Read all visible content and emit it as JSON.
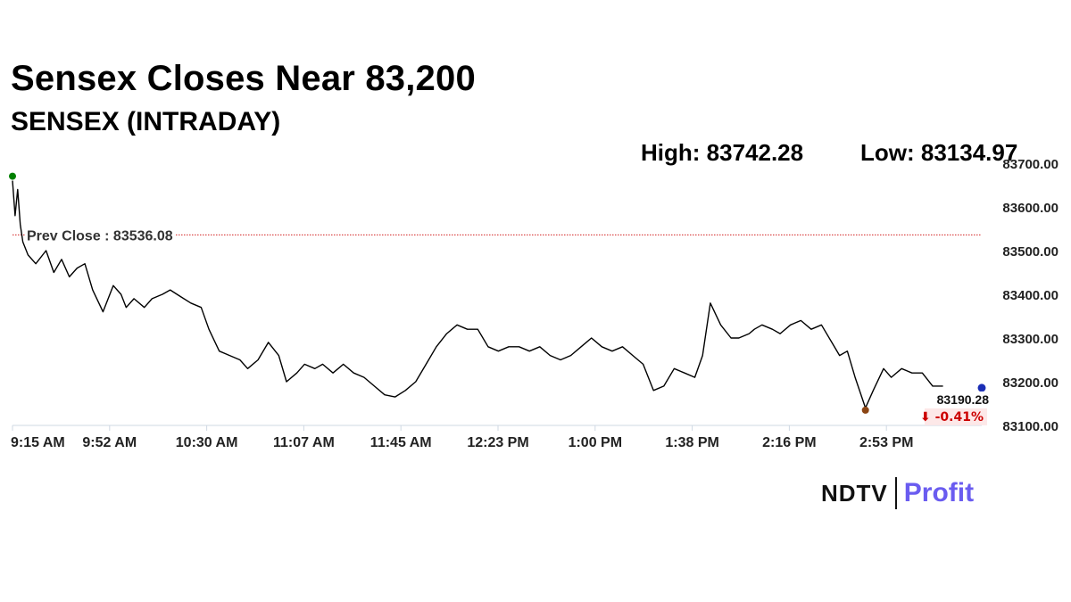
{
  "header": {
    "title": "Sensex Closes Near 83,200",
    "subtitle": "SENSEX (INTRADAY)",
    "high_text": "High: 83742.28",
    "low_text": "Low: 83134.97"
  },
  "chart_data": {
    "type": "line",
    "title": "Sensex Closes Near 83,200",
    "subtitle": "SENSEX (INTRADAY)",
    "xlabel": "",
    "ylabel": "",
    "ylim": [
      83100,
      83700
    ],
    "y_ticks": [
      83700,
      83600,
      83500,
      83400,
      83300,
      83200,
      83100
    ],
    "y_tick_labels": [
      "83700.00",
      "83600.00",
      "83500.00",
      "83400.00",
      "83300.00",
      "83200.00",
      "83100.00"
    ],
    "x_tick_labels": [
      "9:15 AM",
      "9:52 AM",
      "10:30 AM",
      "11:07 AM",
      "11:45 AM",
      "12:23 PM",
      "1:00 PM",
      "1:38 PM",
      "2:16 PM",
      "2:53 PM"
    ],
    "prev_close": 83536.08,
    "prev_close_label": "Prev Close : 83536.08",
    "last_value_label": "83190.28",
    "change_label": "⬇ -0.41%",
    "series": [
      {
        "x": [
          "9:15",
          "9:16",
          "9:17",
          "9:18",
          "9:19",
          "9:21",
          "9:24",
          "9:28",
          "9:31",
          "9:34",
          "9:37",
          "9:40",
          "9:43",
          "9:46",
          "9:50",
          "9:54",
          "9:57",
          "9:59",
          "10:02",
          "10:06",
          "10:09",
          "10:13",
          "10:16",
          "10:20",
          "10:24",
          "10:28",
          "10:31",
          "10:35",
          "10:39",
          "10:43",
          "10:46",
          "10:50",
          "10:54",
          "10:58",
          "11:01",
          "11:05",
          "11:08",
          "11:12",
          "11:15",
          "11:19",
          "11:23",
          "11:27",
          "11:31",
          "11:35",
          "11:39",
          "11:43",
          "11:47",
          "11:51",
          "11:55",
          "11:59",
          "12:03",
          "12:07",
          "12:11",
          "12:15",
          "12:19",
          "12:23",
          "12:27",
          "12:31",
          "12:35",
          "12:39",
          "12:43",
          "12:47",
          "12:51",
          "12:55",
          "12:59",
          "13:03",
          "13:07",
          "13:11",
          "13:15",
          "13:19",
          "13:23",
          "13:27",
          "13:31",
          "13:35",
          "13:39",
          "13:42",
          "13:45",
          "13:49",
          "13:53",
          "13:56",
          "14:00",
          "14:02",
          "14:05",
          "14:09",
          "14:12",
          "14:16",
          "14:20",
          "14:24",
          "14:28",
          "14:32",
          "14:35",
          "14:38",
          "14:41",
          "14:45",
          "14:48",
          "14:52",
          "14:55",
          "14:59",
          "15:03",
          "15:07",
          "15:11",
          "15:15"
        ],
        "y": [
          83660,
          83580,
          83640,
          83560,
          83520,
          83490,
          83470,
          83500,
          83450,
          83480,
          83440,
          83460,
          83470,
          83410,
          83360,
          83420,
          83400,
          83370,
          83390,
          83370,
          83390,
          83400,
          83410,
          83395,
          83380,
          83370,
          83320,
          83270,
          83260,
          83250,
          83230,
          83250,
          83290,
          83260,
          83200,
          83220,
          83240,
          83230,
          83240,
          83220,
          83240,
          83220,
          83210,
          83190,
          83170,
          83165,
          83180,
          83200,
          83240,
          83280,
          83310,
          83330,
          83320,
          83320,
          83280,
          83270,
          83280,
          83280,
          83270,
          83280,
          83260,
          83250,
          83260,
          83280,
          83300,
          83280,
          83270,
          83280,
          83260,
          83240,
          83180,
          83190,
          83230,
          83220,
          83210,
          83260,
          83380,
          83330,
          83300,
          83300,
          83310,
          83320,
          83330,
          83320,
          83310,
          83330,
          83340,
          83320,
          83330,
          83290,
          83260,
          83270,
          83210,
          83140,
          83180,
          83230,
          83210,
          83230,
          83220,
          83220,
          83190,
          83190
        ]
      }
    ],
    "grid": false,
    "colors": {
      "line": "#000000",
      "prev_close": "#cc0000",
      "open_marker": "#008000",
      "low_marker": "#8b4513",
      "last_marker": "#1a2db5",
      "change_text": "#cc0000"
    }
  },
  "branding": {
    "ndtv": "NDTV",
    "profit": "Profit"
  }
}
